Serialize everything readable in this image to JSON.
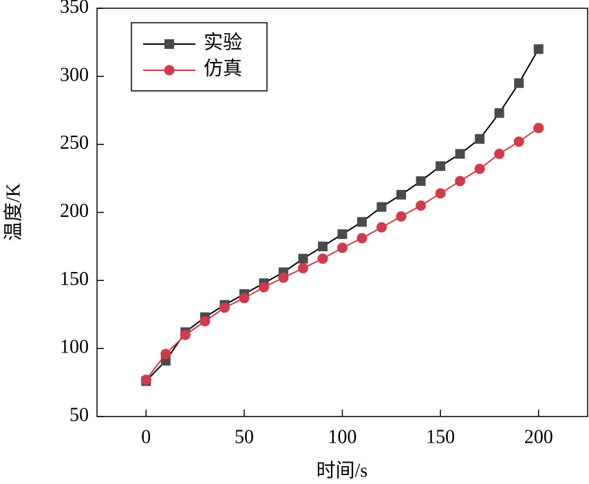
{
  "chart_data": {
    "type": "line",
    "x_label": "时间/s",
    "y_label": "温度/K",
    "x": [
      0,
      10,
      20,
      30,
      40,
      50,
      60,
      70,
      80,
      90,
      100,
      110,
      120,
      130,
      140,
      150,
      160,
      170,
      180,
      190,
      200
    ],
    "series": [
      {
        "name": "实验",
        "color": "#000000",
        "marker_color": "#4a4a4a",
        "marker": "square",
        "values": [
          76,
          91,
          112,
          123,
          132,
          140,
          148,
          156,
          166,
          175,
          184,
          193,
          204,
          213,
          223,
          234,
          243,
          254,
          273,
          295,
          320
        ]
      },
      {
        "name": "仿真",
        "color": "#d03a4a",
        "marker_color": "#d03a4a",
        "marker": "circle",
        "values": [
          77,
          96,
          110,
          120,
          130,
          137,
          145,
          152,
          159,
          166,
          174,
          181,
          189,
          197,
          205,
          214,
          223,
          232,
          243,
          252,
          262
        ]
      }
    ],
    "xlim": [
      -25,
      225
    ],
    "xticks": [
      0,
      50,
      100,
      150,
      200
    ],
    "ylim": [
      50,
      350
    ],
    "yticks": [
      50,
      100,
      150,
      200,
      250,
      300,
      350
    ],
    "legend": "upper-left"
  }
}
